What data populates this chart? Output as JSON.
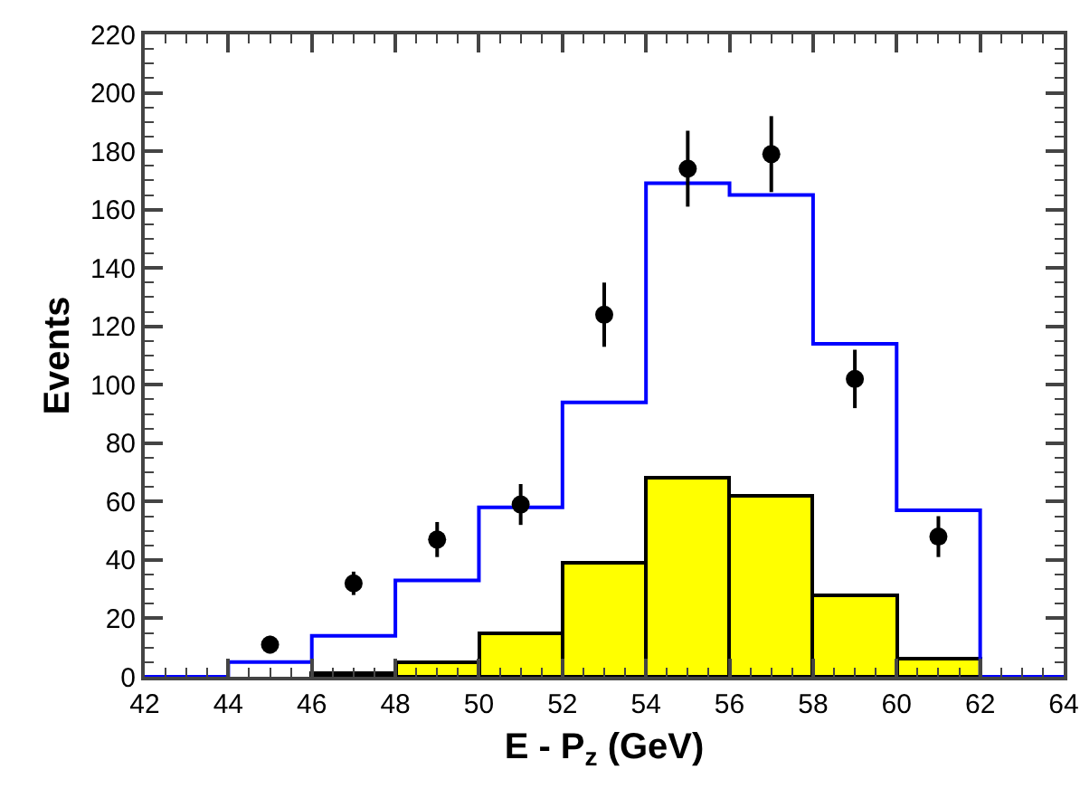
{
  "chart_data": {
    "type": "histogram",
    "xlabel": "E - P$_{z}$ (GeV)",
    "ylabel": "Events",
    "bins": [
      42,
      44,
      46,
      48,
      50,
      52,
      54,
      56,
      58,
      60,
      62,
      64
    ],
    "series": [
      {
        "type": "step",
        "color": "#0000ff",
        "x": [
          42,
          44,
          46,
          48,
          50,
          52,
          54,
          56,
          58,
          60,
          62,
          64
        ],
        "values": [
          0,
          5,
          14,
          33,
          58,
          94,
          169,
          165,
          114,
          57,
          0,
          0
        ]
      },
      {
        "color": "#ffff00",
        "values": [
          null,
          null,
          1,
          5,
          15,
          39,
          68,
          62,
          28,
          6,
          null
        ]
      },
      {
        "type": "scatter",
        "color": "#000000",
        "marker": "circle",
        "x": [
          45,
          47,
          49,
          51,
          53,
          55,
          57,
          59,
          61
        ],
        "values": [
          11,
          32,
          47,
          59,
          124,
          174,
          179,
          102,
          48
        ],
        "errors": [
          3,
          4,
          6,
          7,
          11,
          13,
          13,
          10,
          7
        ]
      }
    ],
    "xlim": [
      42,
      64
    ],
    "xticks": [
      42,
      44,
      46,
      48,
      50,
      52,
      54,
      56,
      58,
      60,
      62,
      64
    ],
    "ylim": [
      0,
      220
    ],
    "yticks": [
      0,
      20,
      40,
      60,
      80,
      100,
      120,
      140,
      160,
      180,
      200,
      220
    ],
    "grid": false
  }
}
